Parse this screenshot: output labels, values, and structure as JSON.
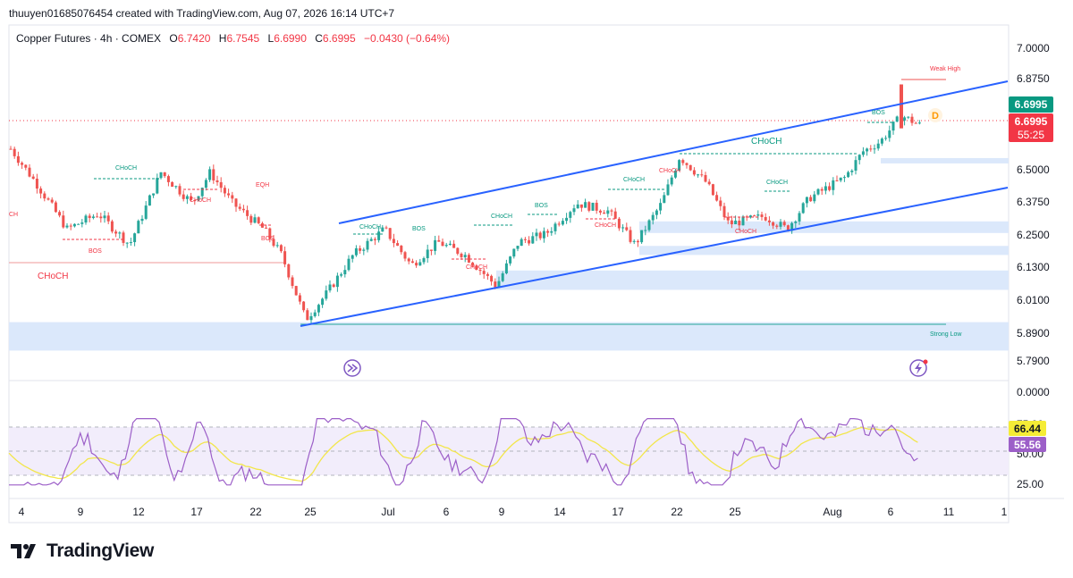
{
  "header": {
    "credit": "thuuyen01685076454 created with TradingView.com, Aug 07, 2026 16:14 UTC+7"
  },
  "legend": {
    "symbol": "Copper Futures · 4h · COMEX",
    "open_label": "O",
    "open": "6.7420",
    "high_label": "H",
    "high": "6.7545",
    "low_label": "L",
    "low": "6.6990",
    "close_label": "C",
    "close": "6.6995",
    "change": "−0.0430 (−0.64%)"
  },
  "price_axis": {
    "ticks": [
      "7.0000",
      "6.8750",
      "6.6250",
      "6.5000",
      "6.3750",
      "6.2500",
      "6.1300",
      "6.0100",
      "5.8900",
      "5.7900",
      "0.0000"
    ],
    "last_price": "6.6995",
    "last_price_red": "6.6995",
    "countdown": "55:25"
  },
  "rsi_axis": {
    "ticks": [
      "75.00",
      "50.00",
      "25.00"
    ],
    "rsi_value": "66.44",
    "rsi_ma_value": "55.56"
  },
  "time_axis": [
    "4",
    "9",
    "12",
    "17",
    "22",
    "25",
    "Jul",
    "6",
    "9",
    "14",
    "17",
    "22",
    "25",
    "Aug",
    "6",
    "11",
    "1"
  ],
  "annotations": {
    "choch": "CHoCH",
    "bos": "BOS",
    "eqh": "EQH",
    "weak_high": "Weak High",
    "strong_low": "Strong Low",
    "choch_left_cut": "CH",
    "dividend_marker": "D"
  },
  "colors": {
    "up": "#26a69a",
    "down": "#ef5350",
    "channel": "#2962ff",
    "zone": "#dbe8fb",
    "rsi_line": "#9c5fc8",
    "rsi_ma": "#f2e64a",
    "rsi_band": "#f2edfb"
  },
  "brand": {
    "name": "TradingView"
  },
  "chart_data": {
    "type": "candlestick",
    "title": "Copper Futures · 4h · COMEX",
    "x_ticks": [
      "4",
      "9",
      "12",
      "17",
      "22",
      "25",
      "Jul",
      "6",
      "9",
      "14",
      "17",
      "22",
      "25",
      "Aug",
      "6",
      "11"
    ],
    "ylim": [
      5.75,
      7.05
    ],
    "last": {
      "open": 6.742,
      "high": 6.7545,
      "low": 6.699,
      "close": 6.6995,
      "change": -0.043,
      "change_pct": -0.64
    },
    "channel_upper": [
      [
        0.315,
        6.28
      ],
      [
        0.94,
        6.84
      ]
    ],
    "channel_lower": [
      [
        0.28,
        5.92
      ],
      [
        0.94,
        6.42
      ]
    ],
    "zones": [
      {
        "from": 5.94,
        "to": 5.83
      },
      {
        "from": 6.14,
        "to": 6.065
      },
      {
        "from": 6.235,
        "to": 6.2
      },
      {
        "from": 6.33,
        "to": 6.285
      },
      {
        "from": 6.575,
        "to": 6.565
      }
    ],
    "rsi": {
      "current": 66.44,
      "ma": 55.56,
      "levels": [
        70,
        50,
        30
      ]
    }
  }
}
